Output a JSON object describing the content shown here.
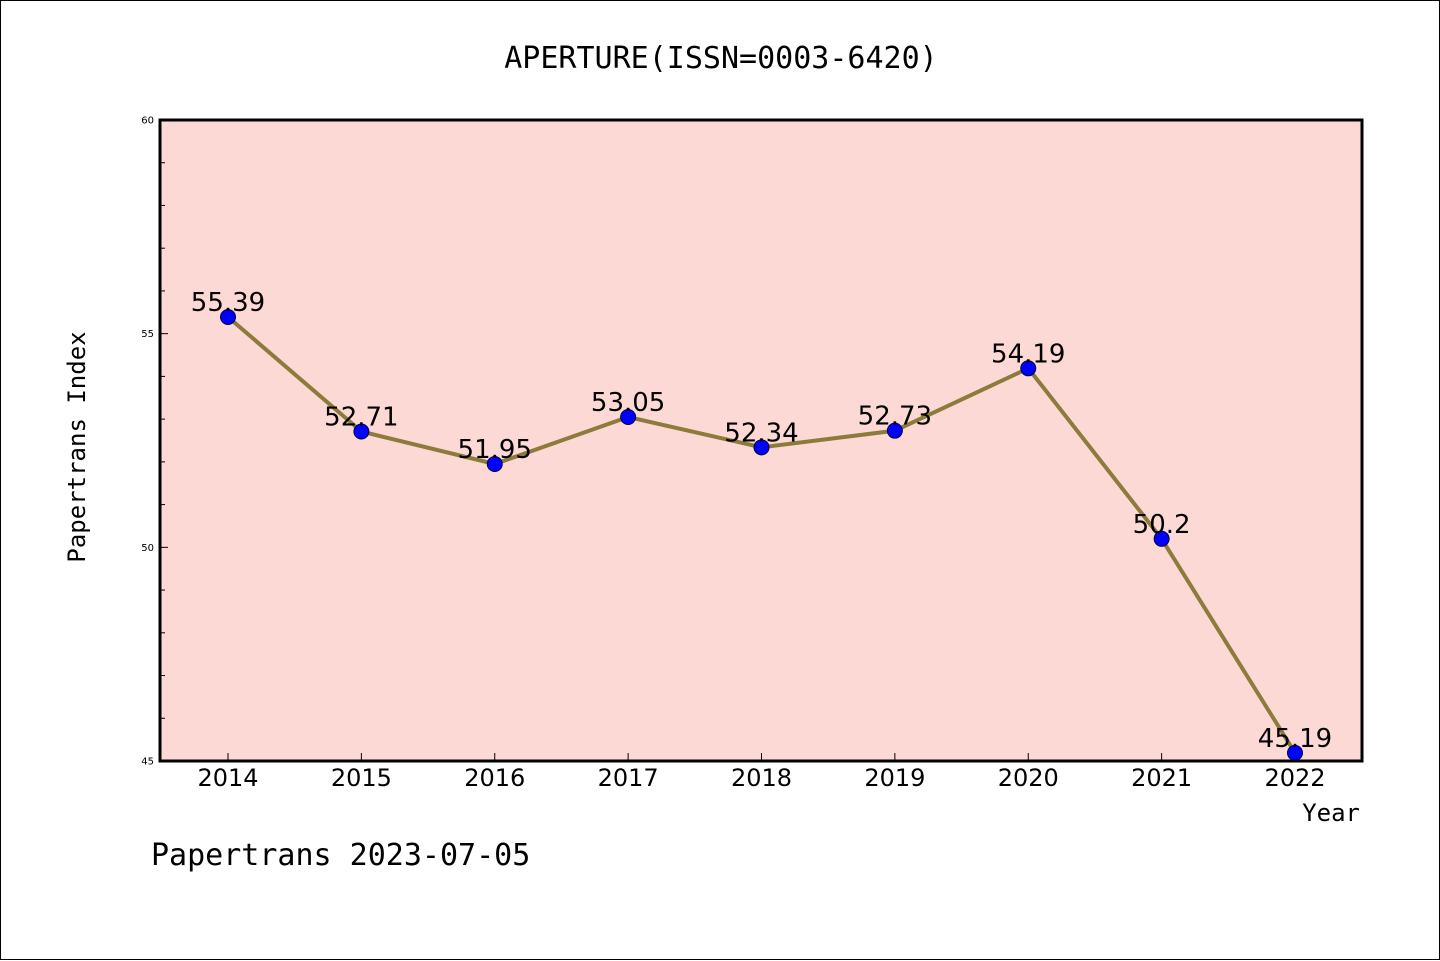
{
  "footer": "Papertrans 2023-07-05",
  "chart_data": {
    "type": "line",
    "title": "APERTURE(ISSN=0003-6420)",
    "xlabel": "Year",
    "ylabel": "Papertrans Index",
    "categories": [
      "2014",
      "2015",
      "2016",
      "2017",
      "2018",
      "2019",
      "2020",
      "2021",
      "2022"
    ],
    "series": [
      {
        "values": [
          55.39,
          52.71,
          51.95,
          53.05,
          52.34,
          52.73,
          54.19,
          50.2,
          45.19
        ],
        "labels": [
          "55.39",
          "52.71",
          "51.95",
          "53.05",
          "52.34",
          "52.73",
          "54.19",
          "50.2",
          "45.19"
        ]
      }
    ],
    "ylim": [
      45,
      60
    ],
    "yticks": [
      "45",
      "50",
      "55",
      "60"
    ],
    "grid": false,
    "legend": "none",
    "colors": {
      "plot_background": "#fdd9d6",
      "line": "#8c7b3a",
      "marker": "#0000ff"
    }
  }
}
